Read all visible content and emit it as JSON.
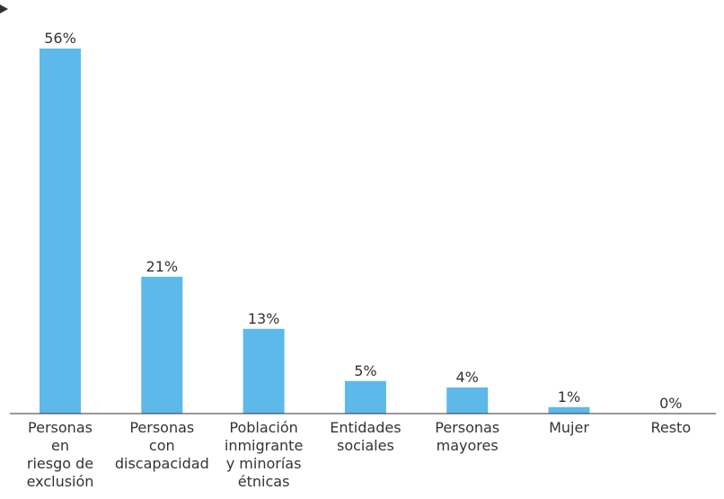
{
  "chart_data": {
    "type": "bar",
    "categories": [
      [
        "Personas",
        "en",
        "riesgo de",
        "exclusión"
      ],
      [
        "Personas",
        "con",
        "discapacidad"
      ],
      [
        "Población",
        "inmigrante",
        "y minorías",
        "étnicas"
      ],
      [
        "Entidades",
        "sociales"
      ],
      [
        "Personas",
        "mayores"
      ],
      [
        "Mujer"
      ],
      [
        "Resto"
      ]
    ],
    "values": [
      56,
      21,
      13,
      5,
      4,
      1,
      0
    ],
    "value_labels": [
      "56%",
      "21%",
      "13%",
      "5%",
      "4%",
      "1%",
      "0%"
    ],
    "ylim": [
      0,
      56
    ],
    "grid": false,
    "legend": "none",
    "colors": {
      "bar": "#5DB9EA",
      "axis": "#333333",
      "text": "#333333"
    }
  }
}
